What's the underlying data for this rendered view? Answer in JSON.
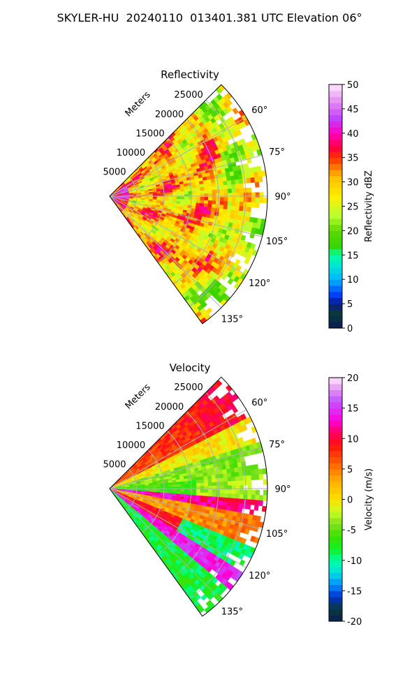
{
  "page": {
    "title": "SKYLER-HU  20240110  013401.381 UTC Elevation 06°"
  },
  "chart_data": [
    {
      "type": "heatmap",
      "title": "Reflectivity",
      "projection": "polar sector",
      "radial_label": "Meters",
      "radial_ticks": [
        5000,
        10000,
        15000,
        20000,
        25000
      ],
      "rmax": 29000,
      "azimuth_ticks": [
        "60°",
        "75°",
        "90°",
        "105°",
        "120°",
        "135°"
      ],
      "azimuth_range_deg": [
        45,
        144
      ],
      "colorbar": {
        "label": "Reflectivity dBZ",
        "range": [
          0,
          50
        ],
        "ticks": [
          0,
          5,
          10,
          15,
          20,
          25,
          30,
          35,
          40,
          45,
          50
        ],
        "palette": [
          [
            0,
            "#0b1c55"
          ],
          [
            3,
            "#0a3a3a"
          ],
          [
            5,
            "#0a1a8a"
          ],
          [
            7,
            "#0040ff"
          ],
          [
            10,
            "#00b4ff"
          ],
          [
            13,
            "#00e8d0"
          ],
          [
            15,
            "#00ffa0"
          ],
          [
            17,
            "#3ad400"
          ],
          [
            20,
            "#5cd800"
          ],
          [
            23,
            "#b8ff30"
          ],
          [
            27,
            "#ffee00"
          ],
          [
            31,
            "#ffc000"
          ],
          [
            35,
            "#ff3000"
          ],
          [
            37,
            "#ff0040"
          ],
          [
            40,
            "#ff00c0"
          ],
          [
            43,
            "#c040ff"
          ],
          [
            46,
            "#e080f0"
          ],
          [
            50,
            "#ffe8ff"
          ]
        ]
      },
      "data_summary": {
        "dominant_dBZ": [
          25,
          33
        ],
        "peak_bands_dBZ": [
          33,
          38
        ],
        "near_radar_dBZ": [
          38,
          42
        ],
        "edge_dBZ": [
          20,
          25
        ]
      }
    },
    {
      "type": "heatmap",
      "title": "Velocity",
      "projection": "polar sector",
      "radial_label": "Meters",
      "radial_ticks": [
        5000,
        10000,
        15000,
        20000,
        25000
      ],
      "rmax": 29000,
      "azimuth_ticks": [
        "60°",
        "75°",
        "90°",
        "105°",
        "120°",
        "135°"
      ],
      "azimuth_range_deg": [
        45,
        144
      ],
      "colorbar": {
        "label": "Velocity (m/s)",
        "range": [
          -20,
          20
        ],
        "ticks": [
          -20,
          -15,
          -10,
          -5,
          0,
          5,
          10,
          15,
          20
        ],
        "palette": [
          [
            -20,
            "#0b1c55"
          ],
          [
            -18,
            "#0a3a3a"
          ],
          [
            -16,
            "#0030d0"
          ],
          [
            -14,
            "#0090ff"
          ],
          [
            -12,
            "#00e0e0"
          ],
          [
            -10,
            "#00ffa0"
          ],
          [
            -8,
            "#10f020"
          ],
          [
            -6,
            "#40e000"
          ],
          [
            -4,
            "#80e020"
          ],
          [
            -2,
            "#c8ff20"
          ],
          [
            0,
            "#ffe000"
          ],
          [
            3,
            "#ffb000"
          ],
          [
            6,
            "#ff6000"
          ],
          [
            9,
            "#ff1010"
          ],
          [
            11,
            "#ff0060"
          ],
          [
            13,
            "#ff00e0"
          ],
          [
            16,
            "#c050ff"
          ],
          [
            18,
            "#e090f0"
          ],
          [
            20,
            "#ffe8ff"
          ]
        ]
      },
      "data_summary": {
        "north_sector_m_s": [
          4,
          10
        ],
        "center_sector_m_s": [
          -8,
          -3
        ],
        "inbound_band_m_s": [
          10,
          16
        ],
        "south_sector_m_s": [
          -10,
          -6
        ]
      }
    }
  ]
}
